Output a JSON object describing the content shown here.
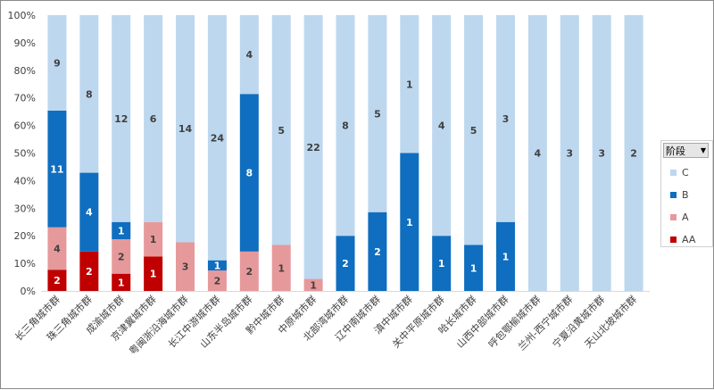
{
  "chart_data": {
    "type": "bar",
    "stacked": "percent",
    "categories": [
      "长三角城市群",
      "珠三角城市群",
      "成渝城市群",
      "京津冀城市群",
      "粤闽浙沿海城市群",
      "长江中游城市群",
      "山东半岛城市群",
      "黔中城市群",
      "中原城市群",
      "北部湾城市群",
      "辽中南城市群",
      "滇中城市群",
      "关中平原城市群",
      "哈长城市群",
      "山西中部城市群",
      "呼包鄂榆城市群",
      "兰州-西宁城市群",
      "宁夏沿黄城市群",
      "天山北坡城市群"
    ],
    "series": [
      {
        "name": "AA",
        "color": "#c00000",
        "label_color": "#ffffff",
        "values": [
          2,
          2,
          1,
          1,
          0,
          0,
          0,
          0,
          0,
          0,
          0,
          0,
          0,
          0,
          0,
          0,
          0,
          0,
          0
        ]
      },
      {
        "name": "A",
        "color": "#e6999b",
        "label_color": "#404040",
        "values": [
          4,
          0,
          2,
          1,
          3,
          2,
          2,
          1,
          1,
          0,
          0,
          0,
          0,
          0,
          0,
          0,
          0,
          0,
          0
        ]
      },
      {
        "name": "B",
        "color": "#0f6ebf",
        "label_color": "#ffffff",
        "values": [
          11,
          4,
          1,
          0,
          0,
          1,
          8,
          0,
          0,
          2,
          2,
          1,
          1,
          1,
          1,
          0,
          0,
          0,
          0
        ]
      },
      {
        "name": "C",
        "color": "#bdd7ee",
        "label_color": "#404040",
        "values": [
          9,
          8,
          12,
          6,
          14,
          24,
          4,
          5,
          22,
          8,
          5,
          1,
          4,
          5,
          3,
          4,
          3,
          3,
          2
        ]
      }
    ],
    "y_ticks": [
      "0%",
      "10%",
      "20%",
      "30%",
      "40%",
      "50%",
      "60%",
      "70%",
      "80%",
      "90%",
      "100%"
    ],
    "ylim": [
      0,
      100
    ],
    "legend_title": "阶段",
    "legend_position": "right",
    "grid": false
  }
}
